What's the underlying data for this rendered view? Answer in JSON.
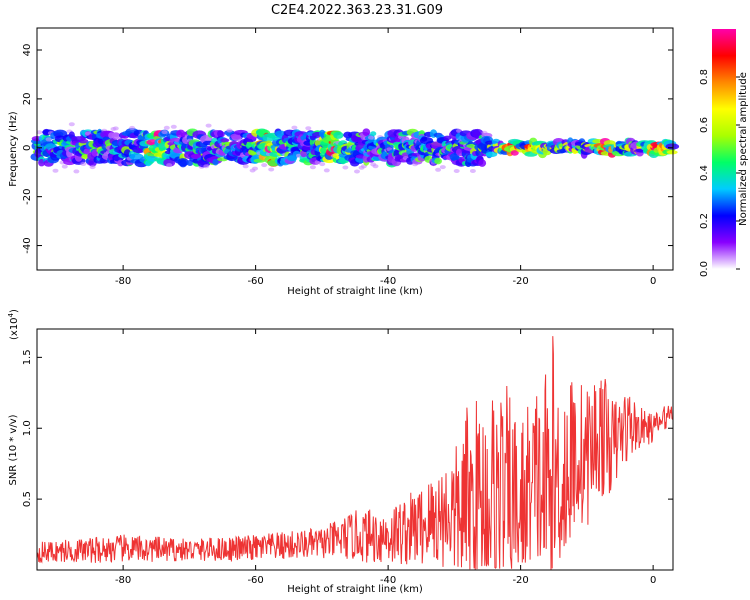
{
  "title": "C2E4.2022.363.23.31.G09",
  "chart_data": [
    {
      "type": "heatmap",
      "xlabel": "Height of straight line (km)",
      "ylabel": "Frequency (Hz)",
      "xlim": [
        -93,
        3
      ],
      "ylim": [
        -50,
        49
      ],
      "xticks": [
        -80,
        -60,
        -40,
        -20,
        0
      ],
      "yticks": [
        -40,
        -20,
        0,
        20,
        40
      ],
      "colorbar": {
        "label": "Normalized spectral amplitude",
        "range": [
          0,
          1
        ],
        "ticks": [
          0.0,
          0.2,
          0.4,
          0.6,
          0.8
        ],
        "colors": [
          "#ffffff",
          "#8800ff",
          "#0000ff",
          "#00ccff",
          "#00ff66",
          "#aaff00",
          "#ffff00",
          "#ff8800",
          "#ff0000",
          "#ff00aa"
        ]
      },
      "band": {
        "center_freq": 0,
        "spread_hz": 5,
        "hot_spots_km": [
          -75,
          -58,
          -48,
          -21,
          -18,
          -7,
          1
        ]
      }
    },
    {
      "type": "line",
      "xlabel": "Height of straight line (km)",
      "ylabel": "SNR (10 * v/v)",
      "scale_label": "(x10",
      "scale_exp": "4",
      "xlim": [
        -93,
        3
      ],
      "ylim": [
        0,
        17000
      ],
      "xticks": [
        -80,
        -60,
        -40,
        -20,
        0
      ],
      "yticks": [
        5000,
        10000,
        15000
      ],
      "ytick_labels": [
        "0.5",
        "1.0",
        "1.5"
      ],
      "series": [
        {
          "color": "#ee3333",
          "envelope_x": [
            -93,
            -80,
            -70,
            -60,
            -50,
            -45,
            -40,
            -35,
            -30,
            -28,
            -25,
            -23,
            -20,
            -18,
            -16,
            -15,
            -12,
            -10,
            -8,
            -6,
            -4,
            -2,
            0,
            3
          ],
          "envelope_max": [
            2000,
            2500,
            2200,
            2500,
            3000,
            4200,
            4500,
            6000,
            8500,
            12000,
            13000,
            14000,
            11000,
            13500,
            15000,
            17000,
            14000,
            13000,
            14500,
            12000,
            13000,
            11500,
            11000,
            12000
          ],
          "envelope_min": [
            500,
            500,
            600,
            600,
            800,
            600,
            300,
            200,
            0,
            0,
            0,
            0,
            0,
            1000,
            0,
            0,
            2500,
            3000,
            5000,
            5500,
            7500,
            8500,
            9000,
            10500
          ]
        }
      ]
    }
  ]
}
